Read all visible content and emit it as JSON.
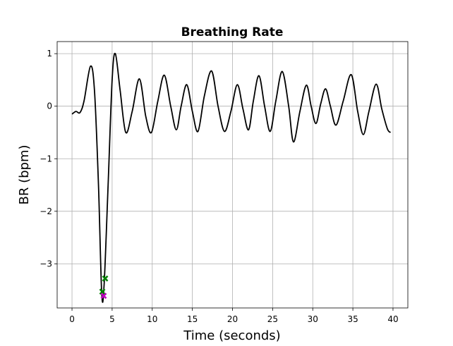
{
  "chart_data": {
    "type": "line",
    "title": "Breathing Rate",
    "xlabel": "Time (seconds)",
    "ylabel": "BR (bpm)",
    "x": [
      0,
      0.5,
      1,
      1.5,
      2.3,
      2.8,
      3.3,
      3.7,
      4.0,
      4.5,
      5.0,
      5.4,
      6,
      6.7,
      7.5,
      8.4,
      9.2,
      9.9,
      10.7,
      11.5,
      12.3,
      13.0,
      13.6,
      14.3,
      15,
      15.7,
      16.5,
      17.4,
      18.2,
      19.0,
      19.8,
      20.6,
      21.3,
      22.0,
      22.6,
      23.3,
      24.0,
      24.7,
      25.4,
      26.2,
      27.0,
      27.6,
      28.4,
      29.2,
      29.8,
      30.4,
      31.0,
      31.6,
      32.2,
      32.9,
      33.8,
      34.8,
      35.6,
      36.3,
      37.0,
      37.9,
      38.6,
      39.3,
      39.7
    ],
    "series": [
      {
        "color": "#000000",
        "values": [
          -0.15,
          -0.1,
          -0.12,
          0.1,
          0.76,
          0.3,
          -1.5,
          -3.55,
          -3.4,
          -1.5,
          0.5,
          1.0,
          0.3,
          -0.5,
          -0.1,
          0.52,
          -0.2,
          -0.5,
          0.1,
          0.59,
          0,
          -0.45,
          0,
          0.41,
          -0.1,
          -0.48,
          0.2,
          0.67,
          0,
          -0.48,
          -0.1,
          0.41,
          -0.05,
          -0.45,
          0.1,
          0.58,
          0,
          -0.48,
          0.1,
          0.66,
          0,
          -0.68,
          -0.1,
          0.4,
          0,
          -0.33,
          0.05,
          0.33,
          0,
          -0.36,
          0.1,
          0.6,
          -0.1,
          -0.54,
          -0.1,
          0.42,
          -0.05,
          -0.43,
          -0.5
        ]
      }
    ],
    "markers": [
      {
        "x": 3.78,
        "y": -3.53,
        "color": "#008000"
      },
      {
        "x": 4.13,
        "y": -3.28,
        "color": "#008000"
      },
      {
        "x": 3.95,
        "y": -3.61,
        "color": "#c000c0"
      }
    ],
    "xlim": [
      -1.85,
      41.85
    ],
    "ylim": [
      -3.84,
      1.23
    ],
    "xticks": [
      0,
      5,
      10,
      15,
      20,
      25,
      30,
      35,
      40
    ],
    "yticks": [
      {
        "value": -3,
        "label": "−3"
      },
      {
        "value": -2,
        "label": "−2"
      },
      {
        "value": -1,
        "label": "−1"
      },
      0,
      1
    ],
    "grid": true
  }
}
